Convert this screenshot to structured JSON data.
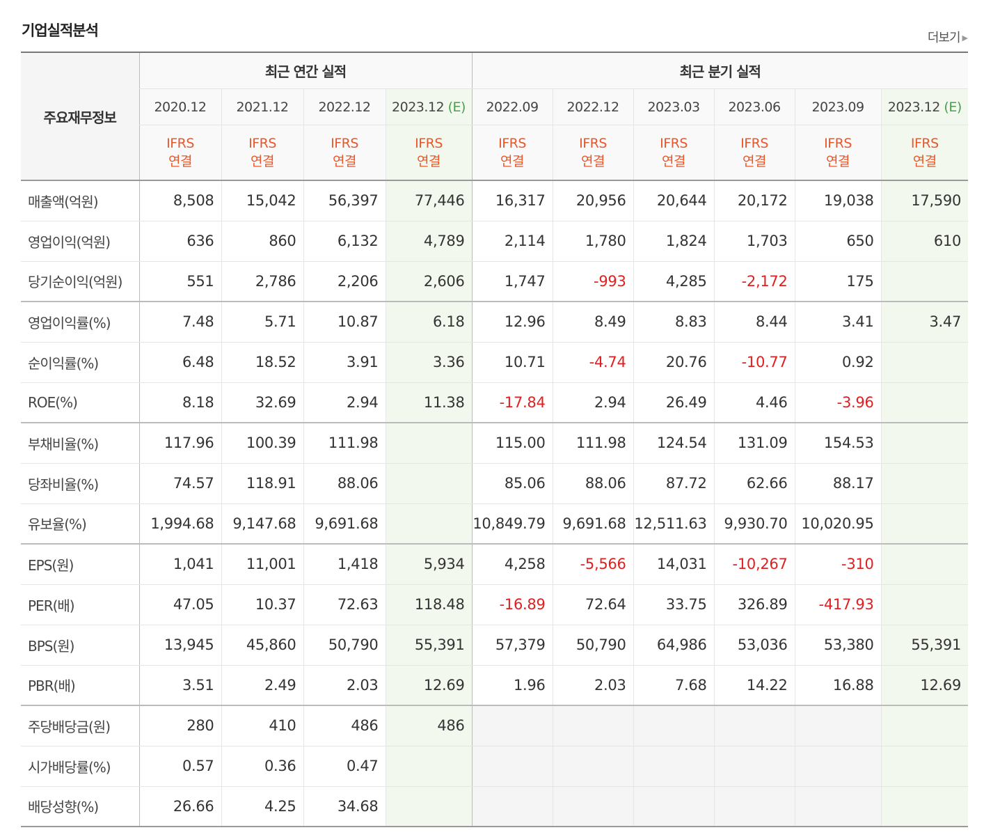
{
  "header": {
    "title": "기업실적분석",
    "more_label": "더보기"
  },
  "table": {
    "corner_label": "주요재무정보",
    "groups": [
      {
        "label": "최근 연간 실적"
      },
      {
        "label": "최근 분기 실적"
      }
    ],
    "periods": [
      {
        "label": "2020.12",
        "est": ""
      },
      {
        "label": "2021.12",
        "est": ""
      },
      {
        "label": "2022.12",
        "est": ""
      },
      {
        "label": "2023.12",
        "est": "(E)"
      },
      {
        "label": "2022.09",
        "est": ""
      },
      {
        "label": "2022.12",
        "est": ""
      },
      {
        "label": "2023.03",
        "est": ""
      },
      {
        "label": "2023.06",
        "est": ""
      },
      {
        "label": "2023.09",
        "est": ""
      },
      {
        "label": "2023.12",
        "est": "(E)"
      }
    ],
    "basis": {
      "top": "IFRS",
      "bottom": "연결"
    },
    "rows": [
      {
        "label": "매출액(억원)",
        "values": [
          "8,508",
          "15,042",
          "56,397",
          "77,446",
          "16,317",
          "20,956",
          "20,644",
          "20,172",
          "19,038",
          "17,590"
        ]
      },
      {
        "label": "영업이익(억원)",
        "values": [
          "636",
          "860",
          "6,132",
          "4,789",
          "2,114",
          "1,780",
          "1,824",
          "1,703",
          "650",
          "610"
        ]
      },
      {
        "label": "당기순이익(억원)",
        "values": [
          "551",
          "2,786",
          "2,206",
          "2,606",
          "1,747",
          "-993",
          "4,285",
          "-2,172",
          "175",
          ""
        ]
      },
      {
        "label": "영업이익률(%)",
        "values": [
          "7.48",
          "5.71",
          "10.87",
          "6.18",
          "12.96",
          "8.49",
          "8.83",
          "8.44",
          "3.41",
          "3.47"
        ]
      },
      {
        "label": "순이익률(%)",
        "values": [
          "6.48",
          "18.52",
          "3.91",
          "3.36",
          "10.71",
          "-4.74",
          "20.76",
          "-10.77",
          "0.92",
          ""
        ]
      },
      {
        "label": "ROE(%)",
        "values": [
          "8.18",
          "32.69",
          "2.94",
          "11.38",
          "-17.84",
          "2.94",
          "26.49",
          "4.46",
          "-3.96",
          ""
        ]
      },
      {
        "label": "부채비율(%)",
        "values": [
          "117.96",
          "100.39",
          "111.98",
          "",
          "115.00",
          "111.98",
          "124.54",
          "131.09",
          "154.53",
          ""
        ]
      },
      {
        "label": "당좌비율(%)",
        "values": [
          "74.57",
          "118.91",
          "88.06",
          "",
          "85.06",
          "88.06",
          "87.72",
          "62.66",
          "88.17",
          ""
        ]
      },
      {
        "label": "유보율(%)",
        "values": [
          "1,994.68",
          "9,147.68",
          "9,691.68",
          "",
          "10,849.79",
          "9,691.68",
          "12,511.63",
          "9,930.70",
          "10,020.95",
          ""
        ]
      },
      {
        "label": "EPS(원)",
        "values": [
          "1,041",
          "11,001",
          "1,418",
          "5,934",
          "4,258",
          "-5,566",
          "14,031",
          "-10,267",
          "-310",
          ""
        ]
      },
      {
        "label": "PER(배)",
        "values": [
          "47.05",
          "10.37",
          "72.63",
          "118.48",
          "-16.89",
          "72.64",
          "33.75",
          "326.89",
          "-417.93",
          ""
        ]
      },
      {
        "label": "BPS(원)",
        "values": [
          "13,945",
          "45,860",
          "50,790",
          "55,391",
          "57,379",
          "50,790",
          "64,986",
          "53,036",
          "53,380",
          "55,391"
        ]
      },
      {
        "label": "PBR(배)",
        "values": [
          "3.51",
          "2.49",
          "2.03",
          "12.69",
          "1.96",
          "2.03",
          "7.68",
          "14.22",
          "16.88",
          "12.69"
        ]
      },
      {
        "label": "주당배당금(원)",
        "values": [
          "280",
          "410",
          "486",
          "486",
          "",
          "",
          "",
          "",
          "",
          ""
        ]
      },
      {
        "label": "시가배당률(%)",
        "values": [
          "0.57",
          "0.36",
          "0.47",
          "",
          "",
          "",
          "",
          "",
          "",
          ""
        ]
      },
      {
        "label": "배당성향(%)",
        "values": [
          "26.66",
          "4.25",
          "34.68",
          "",
          "",
          "",
          "",
          "",
          "",
          ""
        ]
      }
    ]
  },
  "colors": {
    "negative": "#e02020",
    "ifrs_orange": "#e8572a",
    "estimate_bg": "#f3f8ef",
    "estimate_mark": "#4a9d4f"
  }
}
